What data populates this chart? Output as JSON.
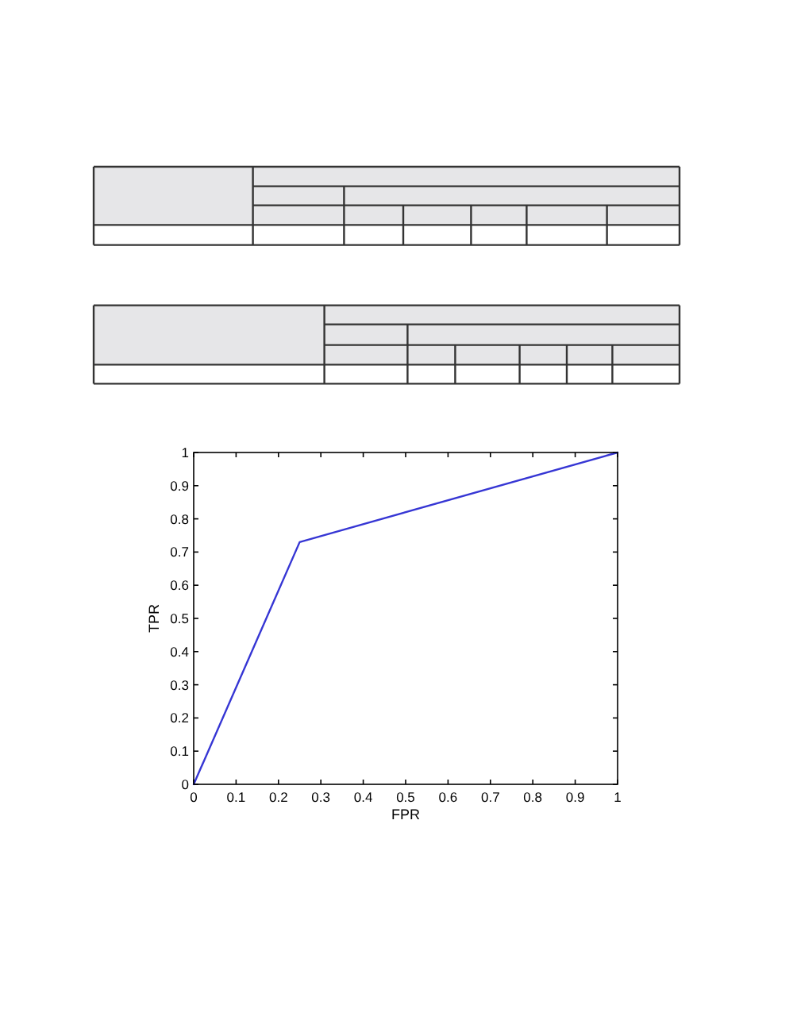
{
  "chart_data": {
    "type": "line",
    "xlabel": "FPR",
    "ylabel": "TPR",
    "x": [
      0,
      0.25,
      1
    ],
    "values": [
      0,
      0.73,
      1
    ],
    "color": "#3636d4",
    "xlim": [
      0,
      1
    ],
    "ylim": [
      0,
      1
    ],
    "xticks": [
      0,
      0.1,
      0.2,
      0.3,
      0.4,
      0.5,
      0.6,
      0.7,
      0.8,
      0.9,
      1
    ],
    "yticks": [
      0,
      0.1,
      0.2,
      0.3,
      0.4,
      0.5,
      0.6,
      0.7,
      0.8,
      0.9,
      1
    ]
  }
}
